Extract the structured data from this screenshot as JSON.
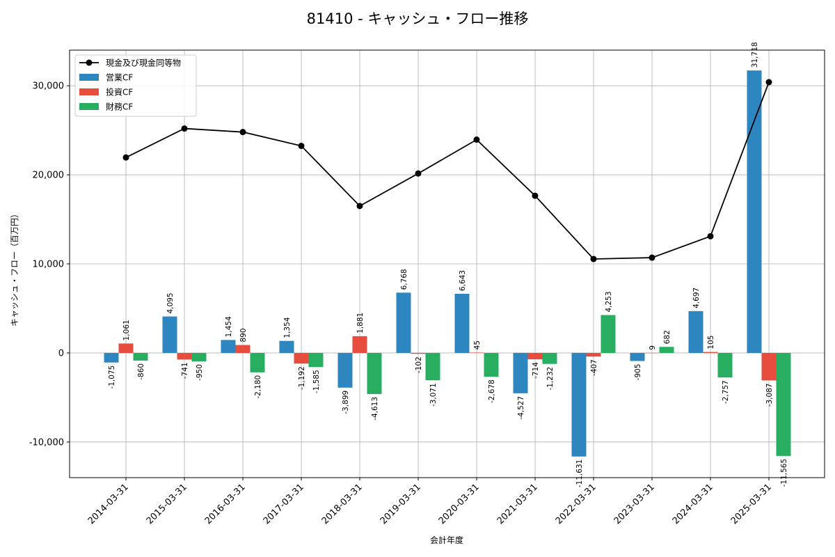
{
  "chart_data": {
    "type": "bar",
    "title": "81410 - キャッシュ・フロー推移",
    "xlabel": "会計年度",
    "ylabel": "キャッシュ・フロー（百万円）",
    "ylim": [
      -14000,
      34000
    ],
    "yticks": [
      -10000,
      0,
      10000,
      20000,
      30000
    ],
    "ytick_labels": [
      "-10,000",
      "0",
      "10,000",
      "20,000",
      "30,000"
    ],
    "grid": true,
    "legend_position": "top-left",
    "categories": [
      "2014-03-31",
      "2015-03-31",
      "2016-03-31",
      "2017-03-31",
      "2018-03-31",
      "2019-03-31",
      "2020-03-31",
      "2021-03-31",
      "2022-03-31",
      "2023-03-31",
      "2024-03-31",
      "2025-03-31"
    ],
    "series": [
      {
        "name": "営業CF",
        "type": "bar",
        "color": "#2e86c1",
        "values": [
          -1075,
          4095,
          1454,
          1354,
          -3899,
          6768,
          6643,
          -4527,
          -11631,
          -905,
          4697,
          31718
        ],
        "labels": [
          "-1,075",
          "4,095",
          "1,454",
          "1,354",
          "-3,899",
          "6,768",
          "6,643",
          "-4,527",
          "-11,631",
          "-905",
          "4,697",
          "31,718"
        ]
      },
      {
        "name": "投資CF",
        "type": "bar",
        "color": "#e74c3c",
        "values": [
          1061,
          -741,
          890,
          -1192,
          1881,
          -102,
          45,
          -714,
          -407,
          9,
          105,
          -3087
        ],
        "labels": [
          "1,061",
          "-741",
          "890",
          "-1,192",
          "1,881",
          "-102",
          "45",
          "-714",
          "-407",
          "9",
          "105",
          "-3,087"
        ]
      },
      {
        "name": "財務CF",
        "type": "bar",
        "color": "#27ae60",
        "values": [
          -860,
          -950,
          -2180,
          -1585,
          -4613,
          -3071,
          -2678,
          -1232,
          4253,
          682,
          -2757,
          -11565
        ],
        "labels": [
          "-860",
          "-950",
          "-2,180",
          "-1,585",
          "-4,613",
          "-3,071",
          "-2,678",
          "-1,232",
          "4,253",
          "682",
          "-2,757",
          "-11,565"
        ]
      },
      {
        "name": "現金及び現金同等物",
        "type": "line",
        "color": "#000000",
        "values": [
          21950,
          25200,
          24800,
          23250,
          16500,
          20150,
          23950,
          17650,
          10550,
          10700,
          13100,
          30400
        ]
      }
    ]
  }
}
